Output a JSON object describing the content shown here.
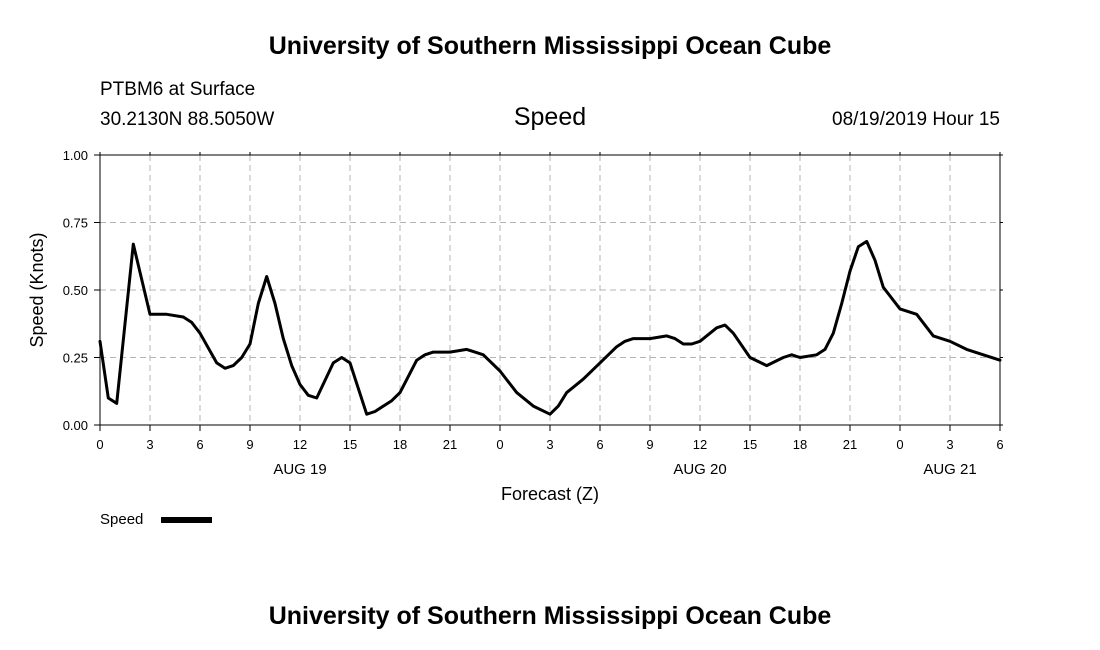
{
  "header": {
    "title_top": "University of Southern Mississippi Ocean Cube",
    "title_bottom": "University of Southern Mississippi Ocean Cube",
    "station": "PTBM6 at Surface",
    "coords": "30.2130N 88.5050W",
    "timestamp": "08/19/2019 Hour 15"
  },
  "legend": {
    "label": "Speed",
    "color": "#000000"
  },
  "chart_data": {
    "type": "line",
    "title": "Speed",
    "xlabel": "Forecast (Z)",
    "ylabel": "Speed (Knots)",
    "xlim": [
      0,
      54
    ],
    "ylim": [
      0,
      1
    ],
    "grid": true,
    "y_ticks": [
      "0.00",
      "0.25",
      "0.50",
      "0.75",
      "1.00"
    ],
    "x_ticks": [
      {
        "x": 0,
        "label": "0"
      },
      {
        "x": 3,
        "label": "3"
      },
      {
        "x": 6,
        "label": "6"
      },
      {
        "x": 9,
        "label": "9"
      },
      {
        "x": 12,
        "label": "12"
      },
      {
        "x": 15,
        "label": "15"
      },
      {
        "x": 18,
        "label": "18"
      },
      {
        "x": 21,
        "label": "21"
      },
      {
        "x": 24,
        "label": "0"
      },
      {
        "x": 27,
        "label": "3"
      },
      {
        "x": 30,
        "label": "6"
      },
      {
        "x": 33,
        "label": "9"
      },
      {
        "x": 36,
        "label": "12"
      },
      {
        "x": 39,
        "label": "15"
      },
      {
        "x": 42,
        "label": "18"
      },
      {
        "x": 45,
        "label": "21"
      },
      {
        "x": 48,
        "label": "0"
      },
      {
        "x": 51,
        "label": "3"
      },
      {
        "x": 54,
        "label": "6"
      }
    ],
    "date_labels": [
      {
        "x": 12,
        "label": "AUG 19"
      },
      {
        "x": 36,
        "label": "AUG 20"
      },
      {
        "x": 51,
        "label": "AUG 21"
      }
    ],
    "series": [
      {
        "name": "Speed",
        "x": [
          0,
          0.5,
          1,
          2,
          3,
          4,
          5,
          5.5,
          6,
          7,
          7.5,
          8,
          8.5,
          9,
          9.5,
          10,
          10.5,
          11,
          11.5,
          12,
          12.5,
          13,
          14,
          14.5,
          15,
          16,
          16.5,
          17,
          17.5,
          18,
          19,
          19.5,
          20,
          20.5,
          21,
          22,
          22.5,
          23,
          24,
          25,
          26,
          27,
          27.5,
          28,
          29,
          30,
          31,
          31.5,
          32,
          33,
          34,
          34.5,
          35,
          35.5,
          36,
          37,
          37.5,
          38,
          39,
          40,
          41,
          41.5,
          42,
          43,
          43.5,
          44,
          44.5,
          45,
          45.5,
          46,
          46.5,
          47,
          48,
          49,
          50,
          51,
          52,
          53,
          54
        ],
        "y": [
          0.31,
          0.1,
          0.08,
          0.67,
          0.41,
          0.41,
          0.4,
          0.38,
          0.34,
          0.23,
          0.21,
          0.22,
          0.25,
          0.3,
          0.45,
          0.55,
          0.45,
          0.32,
          0.22,
          0.15,
          0.11,
          0.1,
          0.23,
          0.25,
          0.23,
          0.04,
          0.05,
          0.07,
          0.09,
          0.12,
          0.24,
          0.26,
          0.27,
          0.27,
          0.27,
          0.28,
          0.27,
          0.26,
          0.2,
          0.12,
          0.07,
          0.04,
          0.07,
          0.12,
          0.17,
          0.23,
          0.29,
          0.31,
          0.32,
          0.32,
          0.33,
          0.32,
          0.3,
          0.3,
          0.31,
          0.36,
          0.37,
          0.34,
          0.25,
          0.22,
          0.25,
          0.26,
          0.25,
          0.26,
          0.28,
          0.34,
          0.45,
          0.57,
          0.66,
          0.68,
          0.61,
          0.51,
          0.43,
          0.41,
          0.33,
          0.31,
          0.28,
          0.26,
          0.24
        ]
      }
    ]
  }
}
